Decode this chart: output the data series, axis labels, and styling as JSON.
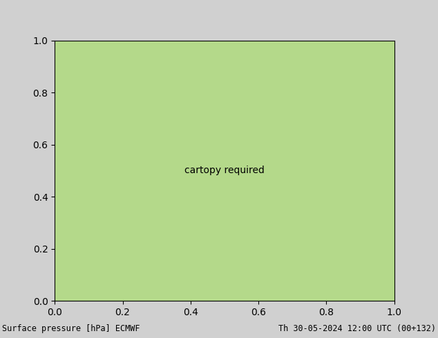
{
  "title_left": "Surface pressure [hPa] ECMWF",
  "title_right": "Th 30-05-2024 12:00 UTC (00+132)",
  "bg_color": "#d0d0d0",
  "land_color": "#b4d98a",
  "ocean_color": "#d0d0d0",
  "lake_color": "#c8c8c8",
  "fig_width": 6.34,
  "fig_height": 4.9,
  "dpi": 100,
  "footer_fontsize": 8.5,
  "contour_color_red": "#cc0000",
  "contour_color_blue": "#0000bb",
  "contour_color_black": "#000000",
  "border_color": "#666666",
  "lon_min": -145,
  "lon_max": -55,
  "lat_min": 15,
  "lat_max": 65
}
